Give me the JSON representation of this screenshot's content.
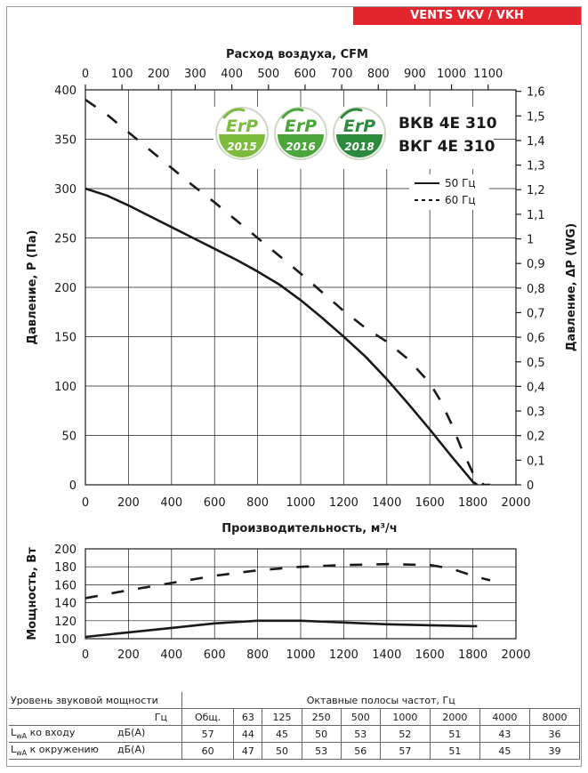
{
  "brand": "VENTS VKV / VKH",
  "models": [
    "ВКВ 4Е 310",
    "ВКГ 4Е 310"
  ],
  "badges": [
    {
      "label": "ErP",
      "year": "2015",
      "color": "#7dbb3c"
    },
    {
      "label": "ErP",
      "year": "2016",
      "color": "#4aa53a"
    },
    {
      "label": "ErP",
      "year": "2018",
      "color": "#2c8a3c"
    }
  ],
  "chart_data": [
    {
      "type": "line",
      "title": "",
      "xlabel": "Производительность, м³/ч",
      "xlabel_top": "Расход воздуха, CFM",
      "ylabel": "Давление, P (Па)",
      "ylabel_right": "Давление, ΔP (WG)",
      "xlim": [
        0,
        2000
      ],
      "ylim": [
        0,
        400
      ],
      "xlim_top": [
        0,
        1176
      ],
      "ylim_right": [
        0,
        1.606
      ],
      "x_ticks": [
        "0",
        "200",
        "400",
        "600",
        "800",
        "1000",
        "1200",
        "1400",
        "1600",
        "1800",
        "2000"
      ],
      "y_ticks": [
        "0",
        "50",
        "100",
        "150",
        "200",
        "250",
        "300",
        "350",
        "400"
      ],
      "x_ticks_top": [
        "0",
        "100",
        "200",
        "300",
        "400",
        "500",
        "600",
        "700",
        "800",
        "900",
        "1000",
        "1100"
      ],
      "y_ticks_right": [
        "0",
        "0,1",
        "0,2",
        "0,3",
        "0,4",
        "0,5",
        "0,6",
        "0,7",
        "0,8",
        "0,9",
        "1",
        "1,1",
        "1,2",
        "1,3",
        "1,4",
        "1,5",
        "1,6"
      ],
      "grid": true,
      "legend": "top-right",
      "series": [
        {
          "name": "50 Гц",
          "style": "solid",
          "x": [
            0,
            100,
            200,
            300,
            400,
            500,
            600,
            700,
            800,
            900,
            1000,
            1100,
            1200,
            1300,
            1400,
            1500,
            1600,
            1700,
            1800,
            1820
          ],
          "y": [
            300,
            293,
            283,
            272,
            261,
            250,
            239,
            228,
            216,
            203,
            187,
            169,
            150,
            130,
            107,
            82,
            56,
            29,
            3,
            0
          ]
        },
        {
          "name": "60 Гц",
          "style": "dashed",
          "x": [
            0,
            100,
            200,
            300,
            400,
            500,
            600,
            700,
            800,
            900,
            1000,
            1100,
            1200,
            1300,
            1400,
            1500,
            1550,
            1600,
            1650,
            1700,
            1750,
            1800,
            1850,
            1880
          ],
          "y": [
            390,
            375,
            357,
            339,
            321,
            303,
            286,
            268,
            250,
            232,
            214,
            195,
            176,
            159,
            145,
            127,
            115,
            103,
            85,
            62,
            35,
            12,
            0,
            0
          ]
        }
      ]
    },
    {
      "type": "line",
      "title": "",
      "xlabel": "",
      "ylabel": "Мощность, Вт",
      "xlim": [
        0,
        2000
      ],
      "ylim": [
        100,
        200
      ],
      "x_ticks": [
        "0",
        "200",
        "400",
        "600",
        "800",
        "1000",
        "1200",
        "1400",
        "1600",
        "1800",
        "2000"
      ],
      "y_ticks": [
        "100",
        "120",
        "140",
        "160",
        "180",
        "200"
      ],
      "grid": true,
      "series": [
        {
          "style": "solid",
          "x": [
            0,
            200,
            400,
            600,
            800,
            1000,
            1200,
            1400,
            1600,
            1800,
            1820
          ],
          "y": [
            102,
            107,
            112,
            117,
            120,
            120,
            118,
            116,
            115,
            114,
            114
          ]
        },
        {
          "style": "dashed",
          "x": [
            0,
            200,
            400,
            600,
            800,
            1000,
            1200,
            1400,
            1600,
            1700,
            1800,
            1880
          ],
          "y": [
            145,
            154,
            162,
            170,
            176,
            180,
            182,
            183,
            182,
            178,
            170,
            165
          ]
        }
      ]
    }
  ],
  "legend": {
    "solid": "50 Гц",
    "dashed": "60 Гц"
  },
  "sound_table": {
    "title_left": "Уровень звуковой мощности",
    "title_right": "Октавные полосы частот, Гц",
    "hz_label": "Гц",
    "columns": [
      "Общ.",
      "63",
      "125",
      "250",
      "500",
      "1000",
      "2000",
      "4000",
      "8000"
    ],
    "rows": [
      {
        "label_main": "L",
        "label_sub": "wA",
        "label_rest": " ко входу",
        "unit": "дБ(А)",
        "values": [
          "57",
          "44",
          "45",
          "50",
          "53",
          "52",
          "51",
          "43",
          "36"
        ]
      },
      {
        "label_main": "L",
        "label_sub": "wA",
        "label_rest": " к окружению",
        "unit": "дБ(А)",
        "values": [
          "60",
          "47",
          "50",
          "53",
          "56",
          "57",
          "51",
          "45",
          "39"
        ]
      }
    ]
  }
}
